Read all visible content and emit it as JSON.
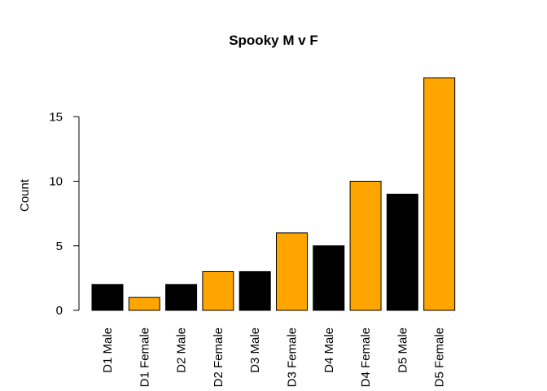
{
  "chart_data": {
    "type": "bar",
    "title": "Spooky M v F",
    "xlabel": "",
    "ylabel": "Count",
    "ylim": [
      0,
      18
    ],
    "yticks": [
      0,
      5,
      10,
      15
    ],
    "categories": [
      "D1 Male",
      "D1 Female",
      "D2 Male",
      "D2 Female",
      "D3 Male",
      "D3 Female",
      "D4 Male",
      "D4 Female",
      "D5 Male",
      "D5 Female"
    ],
    "values": [
      2,
      1,
      2,
      3,
      3,
      6,
      5,
      10,
      9,
      18
    ],
    "bar_colors": [
      "#000000",
      "#FFA500",
      "#000000",
      "#FFA500",
      "#000000",
      "#FFA500",
      "#000000",
      "#FFA500",
      "#000000",
      "#FFA500"
    ],
    "grid": false,
    "legend": "none"
  }
}
